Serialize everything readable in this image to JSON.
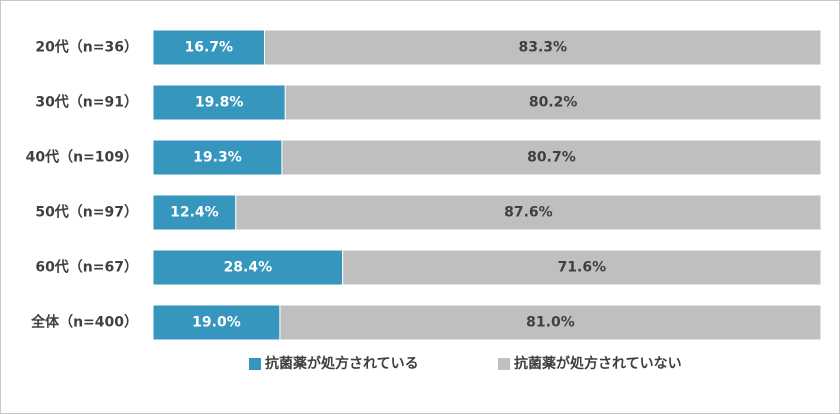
{
  "chart_data": {
    "type": "bar",
    "orientation": "horizontal",
    "stacked": true,
    "percent": true,
    "categories": [
      "20代（n=36）",
      "30代（n=91）",
      "40代（n=109）",
      "50代（n=97）",
      "60代（n=67）",
      "全体（n=400）"
    ],
    "series": [
      {
        "name": "抗菌薬が処方されている",
        "values": [
          16.7,
          19.8,
          19.3,
          12.4,
          28.4,
          19.0
        ],
        "labels": [
          "16.7%",
          "19.8%",
          "19.3%",
          "12.4%",
          "28.4%",
          "19.0%"
        ],
        "color": "#3696bd"
      },
      {
        "name": "抗菌薬が処方されていない",
        "values": [
          83.3,
          80.2,
          80.7,
          87.6,
          71.6,
          81.0
        ],
        "labels": [
          "83.3%",
          "80.2%",
          "80.7%",
          "87.6%",
          "71.6%",
          "81.0%"
        ],
        "color": "#bfbfbf"
      }
    ],
    "xlim": [
      0,
      100
    ],
    "grid": false,
    "legend_position": "bottom"
  }
}
